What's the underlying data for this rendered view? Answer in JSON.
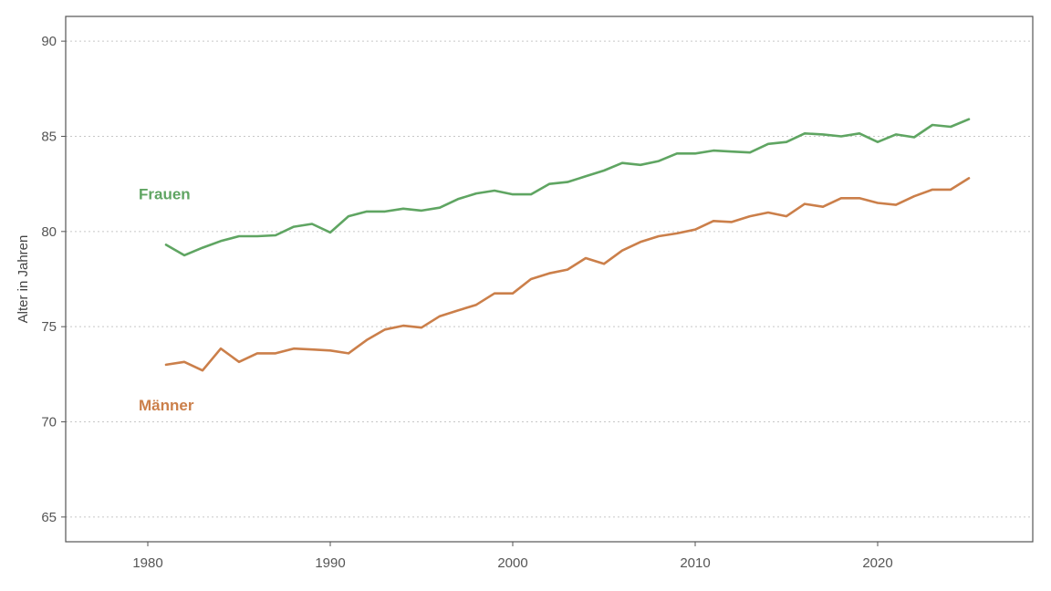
{
  "chart_data": {
    "type": "line",
    "ylabel": "Alter in Jahren",
    "xlim": [
      1975.5,
      2028.5
    ],
    "ylim": [
      63.7,
      91.3
    ],
    "grid": {
      "y": true,
      "x": false
    },
    "x_ticks": [
      1980,
      1990,
      2000,
      2010,
      2020
    ],
    "y_ticks": [
      65,
      70,
      75,
      80,
      85,
      90
    ],
    "x": [
      1981,
      1982,
      1983,
      1984,
      1985,
      1986,
      1987,
      1988,
      1989,
      1990,
      1991,
      1992,
      1993,
      1994,
      1995,
      1996,
      1997,
      1998,
      1999,
      2000,
      2001,
      2002,
      2003,
      2004,
      2005,
      2006,
      2007,
      2008,
      2009,
      2010,
      2011,
      2012,
      2013,
      2014,
      2015,
      2016,
      2017,
      2018,
      2019,
      2020,
      2021,
      2022,
      2023,
      2024,
      2025
    ],
    "series": [
      {
        "name": "Frauen",
        "color": "#5fa562",
        "label_position": {
          "x": 1979.5,
          "y": 81.7
        },
        "values": [
          79.3,
          78.75,
          79.15,
          79.5,
          79.75,
          79.75,
          79.8,
          80.25,
          80.4,
          79.95,
          80.8,
          81.05,
          81.05,
          81.2,
          81.1,
          81.25,
          81.7,
          82.0,
          82.15,
          81.95,
          81.95,
          82.5,
          82.6,
          82.9,
          83.2,
          83.6,
          83.5,
          83.7,
          84.1,
          84.1,
          84.25,
          84.2,
          84.15,
          84.6,
          84.7,
          85.15,
          85.1,
          85.0,
          85.15,
          84.7,
          85.1,
          84.95,
          85.6,
          85.5,
          85.9
        ]
      },
      {
        "name": "Männer",
        "color": "#cb7f4a",
        "label_position": {
          "x": 1979.5,
          "y": 70.6
        },
        "values": [
          73.0,
          73.15,
          72.7,
          73.85,
          73.15,
          73.6,
          73.6,
          73.85,
          73.8,
          73.75,
          73.6,
          74.3,
          74.85,
          75.05,
          74.95,
          75.55,
          75.85,
          76.15,
          76.75,
          76.75,
          77.5,
          77.8,
          78.0,
          78.6,
          78.3,
          79.0,
          79.45,
          79.75,
          79.9,
          80.1,
          80.55,
          80.5,
          80.8,
          81.0,
          80.8,
          81.45,
          81.3,
          81.75,
          81.75,
          81.5,
          81.4,
          81.85,
          82.2,
          82.2,
          82.8
        ]
      }
    ]
  }
}
